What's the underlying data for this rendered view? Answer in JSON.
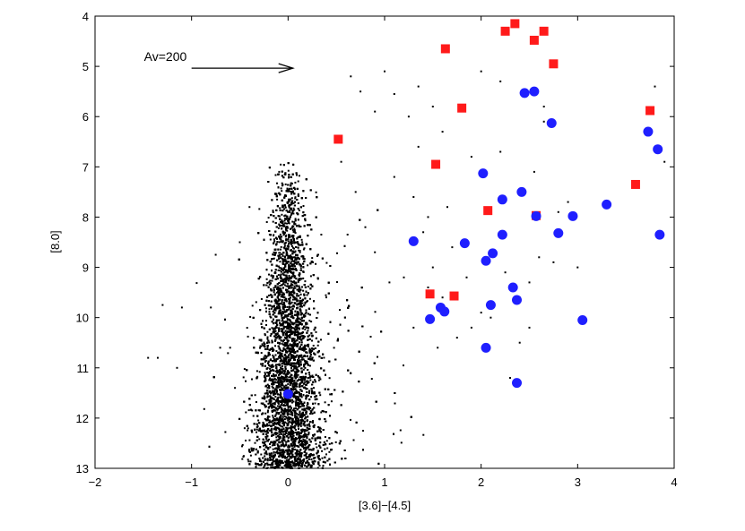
{
  "chart_data": {
    "type": "scatter",
    "title": "",
    "xlabel": "[3.6]−[4.5]",
    "ylabel": "[8.0]",
    "xlim": [
      -2,
      4
    ],
    "ylim": [
      13,
      4
    ],
    "y_inverted": true,
    "xticks": [
      "−2",
      "−1",
      "0",
      "1",
      "2",
      "3",
      "4"
    ],
    "yticks": [
      "4",
      "5",
      "6",
      "7",
      "8",
      "9",
      "10",
      "11",
      "12",
      "13"
    ],
    "grid": false,
    "annotation": {
      "text": "Av=200",
      "arrow_from": [
        -1.0,
        5.0
      ],
      "arrow_to": [
        0.05,
        5.0
      ]
    },
    "series": [
      {
        "marker": "dot",
        "color": "#000000",
        "description": "dense field-star cloud centered near x=0 spanning y≈7 to 13",
        "cloud": {
          "center_x": 0.0,
          "x_spread": 0.13,
          "y_min": 6.9,
          "y_max": 13.0,
          "count": 9000
        },
        "values": [
          [
            -1.3,
            9.75
          ],
          [
            -1.35,
            10.8
          ],
          [
            -1.45,
            10.8
          ],
          [
            -1.1,
            9.8
          ],
          [
            -1.15,
            11.0
          ],
          [
            -0.8,
            9.8
          ],
          [
            -0.75,
            8.75
          ],
          [
            -0.9,
            10.7
          ],
          [
            -0.6,
            10.6
          ],
          [
            -0.5,
            8.5
          ],
          [
            -0.55,
            11.4
          ],
          [
            -0.4,
            7.8
          ],
          [
            0.55,
            6.9
          ],
          [
            0.7,
            7.5
          ],
          [
            0.8,
            8.2
          ],
          [
            0.9,
            8.7
          ],
          [
            1.05,
            9.3
          ],
          [
            1.2,
            9.2
          ],
          [
            1.1,
            7.2
          ],
          [
            1.3,
            7.6
          ],
          [
            1.4,
            8.3
          ],
          [
            1.5,
            9.0
          ],
          [
            1.6,
            9.6
          ],
          [
            1.7,
            8.6
          ],
          [
            1.75,
            10.4
          ],
          [
            1.85,
            9.2
          ],
          [
            1.9,
            10.2
          ],
          [
            2.0,
            9.9
          ],
          [
            2.1,
            10.0
          ],
          [
            2.25,
            9.1
          ],
          [
            2.4,
            9.6
          ],
          [
            2.5,
            10.2
          ],
          [
            2.6,
            8.8
          ],
          [
            2.75,
            8.9
          ],
          [
            2.8,
            7.9
          ],
          [
            2.9,
            7.7
          ],
          [
            3.0,
            9.0
          ],
          [
            1.45,
            8.0
          ],
          [
            1.65,
            7.8
          ],
          [
            1.9,
            6.8
          ],
          [
            2.2,
            6.7
          ],
          [
            2.55,
            7.1
          ],
          [
            2.65,
            6.1
          ],
          [
            1.25,
            6.0
          ],
          [
            1.35,
            6.6
          ],
          [
            0.65,
            5.2
          ],
          [
            0.75,
            5.5
          ],
          [
            0.9,
            5.9
          ],
          [
            1.0,
            5.1
          ],
          [
            1.1,
            5.55
          ],
          [
            1.35,
            5.4
          ],
          [
            1.5,
            5.8
          ],
          [
            1.6,
            6.3
          ],
          [
            2.5,
            9.3
          ],
          [
            2.4,
            10.5
          ],
          [
            1.55,
            10.6
          ],
          [
            2.3,
            11.2
          ],
          [
            1.3,
            10.2
          ],
          [
            1.45,
            9.4
          ],
          [
            2.65,
            5.8
          ],
          [
            3.8,
            5.4
          ],
          [
            3.9,
            6.9
          ],
          [
            2.0,
            5.1
          ],
          [
            2.2,
            5.3
          ]
        ]
      },
      {
        "name": "",
        "marker": "square",
        "color": "#ff1a1a",
        "values": [
          [
            2.35,
            4.15
          ],
          [
            2.25,
            4.3
          ],
          [
            2.65,
            4.3
          ],
          [
            2.55,
            4.48
          ],
          [
            1.63,
            4.65
          ],
          [
            2.75,
            4.95
          ],
          [
            1.8,
            5.83
          ],
          [
            3.75,
            5.88
          ],
          [
            0.52,
            6.45
          ],
          [
            1.53,
            6.95
          ],
          [
            3.6,
            7.35
          ],
          [
            2.07,
            7.87
          ],
          [
            2.57,
            7.97
          ],
          [
            1.47,
            9.53
          ],
          [
            1.72,
            9.57
          ]
        ]
      },
      {
        "name": "",
        "marker": "circle",
        "color": "#1f1fff",
        "values": [
          [
            2.45,
            5.53
          ],
          [
            2.55,
            5.5
          ],
          [
            2.73,
            6.13
          ],
          [
            3.73,
            6.3
          ],
          [
            3.83,
            6.65
          ],
          [
            2.02,
            7.13
          ],
          [
            2.42,
            7.5
          ],
          [
            2.22,
            7.65
          ],
          [
            3.3,
            7.75
          ],
          [
            2.57,
            7.98
          ],
          [
            2.95,
            7.98
          ],
          [
            2.22,
            8.35
          ],
          [
            2.8,
            8.32
          ],
          [
            3.85,
            8.35
          ],
          [
            1.3,
            8.48
          ],
          [
            1.83,
            8.52
          ],
          [
            2.12,
            8.72
          ],
          [
            2.05,
            8.87
          ],
          [
            2.33,
            9.4
          ],
          [
            2.37,
            9.65
          ],
          [
            2.1,
            9.75
          ],
          [
            1.58,
            9.8
          ],
          [
            1.62,
            9.88
          ],
          [
            1.47,
            10.03
          ],
          [
            3.05,
            10.05
          ],
          [
            2.05,
            10.6
          ],
          [
            2.37,
            11.3
          ],
          [
            0.0,
            11.52
          ]
        ]
      }
    ]
  }
}
